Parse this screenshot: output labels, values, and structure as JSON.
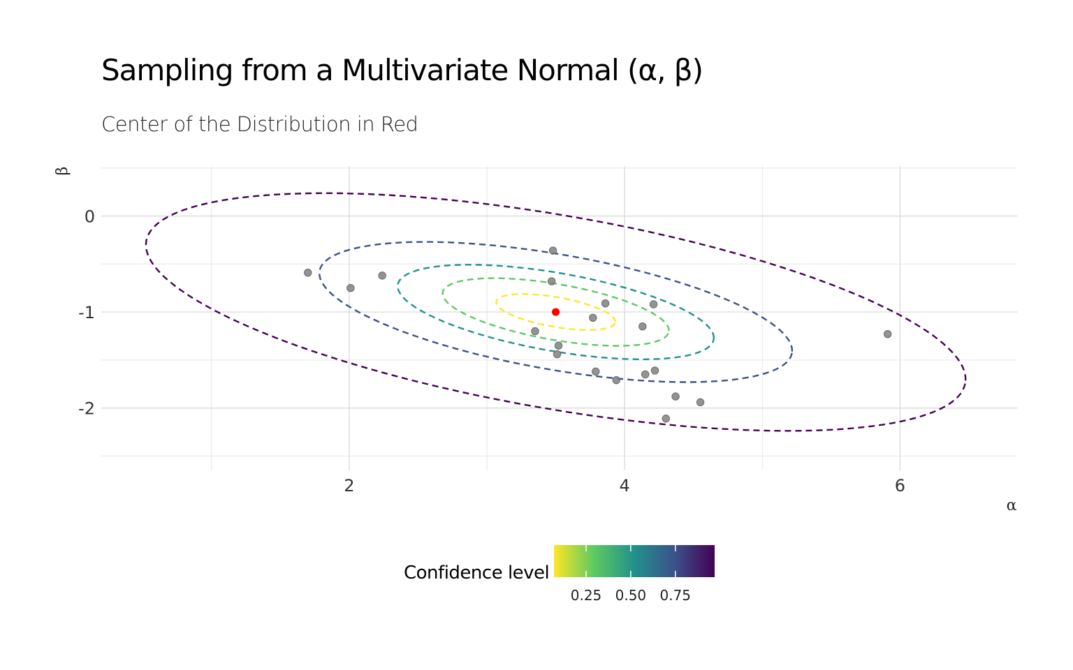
{
  "title": "Sampling from a Multivariate Normal (α, β)",
  "subtitle": "Center of the Distribution in Red",
  "chart_data": {
    "type": "scatter",
    "xlabel": "α",
    "ylabel": "β",
    "xlim": [
      0.2,
      6.85
    ],
    "ylim": [
      -2.65,
      0.52
    ],
    "x_ticks": [
      2,
      4,
      6
    ],
    "y_ticks": [
      0,
      -1,
      -2
    ],
    "grid": true,
    "center": {
      "x": 3.5,
      "y": -1.0,
      "color": "#ff0000"
    },
    "samples": {
      "color": "#808080",
      "points": [
        [
          3.48,
          -0.36
        ],
        [
          3.47,
          -0.68
        ],
        [
          1.7,
          -0.59
        ],
        [
          2.01,
          -0.75
        ],
        [
          2.24,
          -0.62
        ],
        [
          3.86,
          -0.91
        ],
        [
          4.21,
          -0.92
        ],
        [
          3.77,
          -1.06
        ],
        [
          4.13,
          -1.15
        ],
        [
          3.35,
          -1.2
        ],
        [
          3.52,
          -1.35
        ],
        [
          3.51,
          -1.44
        ],
        [
          3.79,
          -1.62
        ],
        [
          3.94,
          -1.71
        ],
        [
          4.15,
          -1.65
        ],
        [
          4.22,
          -1.61
        ],
        [
          4.37,
          -1.88
        ],
        [
          4.55,
          -1.94
        ],
        [
          4.3,
          -2.11
        ],
        [
          5.91,
          -1.23
        ]
      ]
    },
    "ellipses": [
      {
        "level": 0.1,
        "color": "#fde725",
        "rx": 0.89,
        "ry": 0.16,
        "angle_deg": -13.5
      },
      {
        "level": 0.3,
        "color": "#5ec962",
        "rx": 1.69,
        "ry": 0.3,
        "angle_deg": -13.5
      },
      {
        "level": 0.5,
        "color": "#21918c",
        "rx": 2.36,
        "ry": 0.42,
        "angle_deg": -13.5
      },
      {
        "level": 0.7,
        "color": "#3b528b",
        "rx": 3.53,
        "ry": 0.62,
        "angle_deg": -13.5
      },
      {
        "level": 0.9,
        "color": "#440154",
        "rx": 6.12,
        "ry": 1.04,
        "angle_deg": -13.5
      }
    ],
    "legend": {
      "title": "Confidence level",
      "tick_labels": [
        "0.25",
        "0.50",
        "0.75"
      ],
      "tick_values": [
        0.25,
        0.5,
        0.75
      ],
      "range": [
        0.07,
        0.97
      ],
      "colors": [
        "#fde725",
        "#5ec962",
        "#21918c",
        "#3b528b",
        "#440154"
      ],
      "placement": "bottom"
    }
  }
}
